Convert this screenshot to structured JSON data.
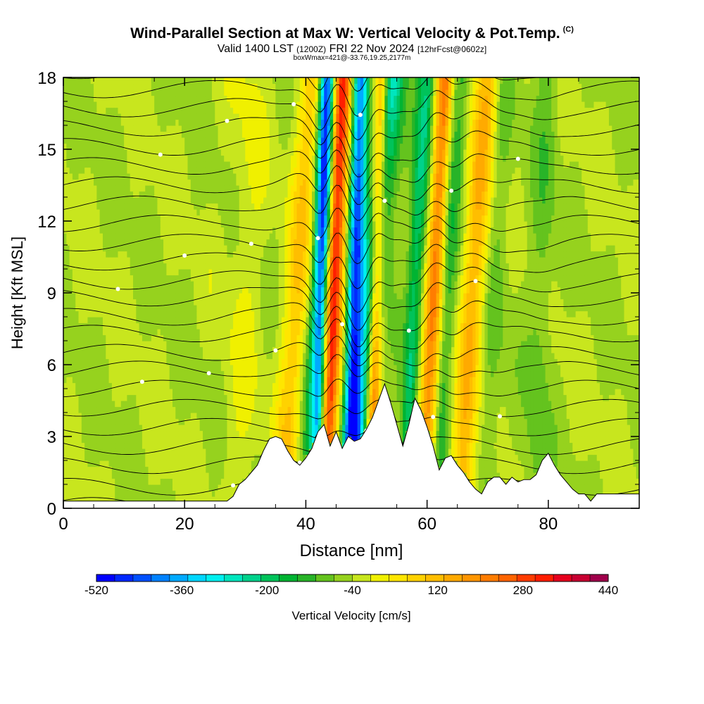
{
  "header": {
    "title": "Wind-Parallel Section at Max W: Vertical Velocity & Pot.Temp.",
    "copyright": "(C)",
    "valid_prefix": "Valid 1400 LST",
    "valid_utc": "(1200Z)",
    "valid_date": "FRI 22 Nov 2024",
    "forecast": "[12hrFcst@0602z]",
    "boxmax": "boxWmax=421@-33.76,19.25,2177m"
  },
  "chart_data": {
    "type": "heatmap",
    "xlabel": "Distance [nm]",
    "ylabel": "Height [Kft MSL]",
    "xlim": [
      0,
      95
    ],
    "ylim": [
      0,
      18
    ],
    "x_ticks": [
      "0",
      "20",
      "40",
      "60",
      "80"
    ],
    "x_tick_values": [
      0,
      20,
      40,
      60,
      80
    ],
    "y_ticks": [
      "0",
      "3",
      "6",
      "9",
      "12",
      "15",
      "18"
    ],
    "y_tick_values": [
      0,
      3,
      6,
      9,
      12,
      15,
      18
    ],
    "colorbar": {
      "label": "Vertical Velocity [cm/s]",
      "tick_labels": [
        "-520",
        "-360",
        "-200",
        "-40",
        "120",
        "280",
        "440"
      ],
      "min": -520,
      "max": 440,
      "step": 40,
      "colors": [
        "#0000ff",
        "#0028ff",
        "#0050ff",
        "#0082ff",
        "#00aaff",
        "#00d7ff",
        "#00f0f0",
        "#00e6be",
        "#00d28c",
        "#00c35a",
        "#00b432",
        "#28b428",
        "#64c31e",
        "#96d21e",
        "#c8e61e",
        "#f0f000",
        "#ffe600",
        "#ffd200",
        "#ffbe00",
        "#ffaa00",
        "#ff9600",
        "#ff7d00",
        "#ff6400",
        "#ff3c00",
        "#ff1e00",
        "#e6001e",
        "#c80032",
        "#a0004b"
      ]
    },
    "max_w": 421,
    "terrain": [
      [
        0,
        0.3
      ],
      [
        27,
        0.3
      ],
      [
        28,
        0.5
      ],
      [
        29,
        1
      ],
      [
        30,
        1.2
      ],
      [
        31,
        1.5
      ],
      [
        32,
        1.8
      ],
      [
        33,
        2.4
      ],
      [
        34,
        2.9
      ],
      [
        35,
        3
      ],
      [
        36,
        2.9
      ],
      [
        37,
        2.4
      ],
      [
        38,
        2
      ],
      [
        39,
        1.8
      ],
      [
        40,
        2.1
      ],
      [
        41,
        2.5
      ],
      [
        42,
        3.2
      ],
      [
        43,
        3.5
      ],
      [
        44,
        2.6
      ],
      [
        45,
        3.2
      ],
      [
        46,
        2.5
      ],
      [
        47,
        3
      ],
      [
        48,
        2.8
      ],
      [
        49,
        2.9
      ],
      [
        50,
        3.3
      ],
      [
        51,
        3.8
      ],
      [
        52,
        4.5
      ],
      [
        53,
        5.2
      ],
      [
        54,
        4.4
      ],
      [
        55,
        3.5
      ],
      [
        56,
        2.6
      ],
      [
        57,
        3.5
      ],
      [
        58,
        4.6
      ],
      [
        59,
        4.1
      ],
      [
        60,
        3.4
      ],
      [
        61,
        2.6
      ],
      [
        62,
        1.6
      ],
      [
        63,
        2.1
      ],
      [
        64,
        2.2
      ],
      [
        65,
        1.8
      ],
      [
        66,
        1.5
      ],
      [
        67,
        1.1
      ],
      [
        68,
        0.8
      ],
      [
        69,
        0.6
      ],
      [
        70,
        1.1
      ],
      [
        71,
        1.3
      ],
      [
        72,
        1.3
      ],
      [
        73,
        1
      ],
      [
        74,
        1.3
      ],
      [
        75,
        1.1
      ],
      [
        76,
        1.2
      ],
      [
        77,
        1.2
      ],
      [
        78,
        1.4
      ],
      [
        79,
        2
      ],
      [
        80,
        2.3
      ],
      [
        81,
        1.8
      ],
      [
        82,
        1.4
      ],
      [
        83,
        1.1
      ],
      [
        84,
        0.8
      ],
      [
        85,
        0.6
      ],
      [
        86,
        0.6
      ],
      [
        87,
        0.3
      ],
      [
        88,
        0.6
      ],
      [
        89,
        0.6
      ],
      [
        95,
        0.6
      ]
    ],
    "features": [
      {
        "x0": 43.5,
        "x1": 46,
        "width": 1.6,
        "w": 420
      },
      {
        "x0": 47.5,
        "x1": 49,
        "width": 1.3,
        "w": -440
      },
      {
        "x0": 42,
        "x1": 43.5,
        "width": 1.2,
        "w": -460
      },
      {
        "x0": 51,
        "x1": 52.5,
        "width": 1.2,
        "w": 360
      },
      {
        "x0": 49,
        "x1": 54,
        "width": 2.2,
        "w": -300
      },
      {
        "x0": 60,
        "x1": 63,
        "width": 1.5,
        "w": 320
      },
      {
        "x0": 57,
        "x1": 60,
        "width": 1.5,
        "w": -200
      },
      {
        "x0": 62,
        "x1": 65,
        "width": 1.8,
        "w": -120
      },
      {
        "x0": 66,
        "x1": 70,
        "width": 2.0,
        "w": 200
      },
      {
        "x0": 37,
        "x1": 41,
        "width": 2.2,
        "w": 150
      },
      {
        "x0": 40,
        "x1": 44,
        "width": 1.5,
        "w": -100
      },
      {
        "x0": 70,
        "x1": 73,
        "width": 1.8,
        "w": -60
      },
      {
        "x0": 78,
        "x1": 80,
        "width": 2.0,
        "w": -60
      },
      {
        "x0": 29,
        "x1": 31,
        "width": 3.0,
        "w": 40
      }
    ],
    "contour_levels": [
      -0.8,
      0.1,
      0.9,
      1.8,
      2.6,
      3.4,
      4.2,
      5.0,
      5.8,
      6.5,
      7.3,
      8.0,
      8.8,
      9.5,
      10.3,
      11.1,
      11.9,
      12.7,
      13.5,
      14.3,
      15.1,
      15.9,
      16.7,
      17.5,
      18.3
    ]
  }
}
